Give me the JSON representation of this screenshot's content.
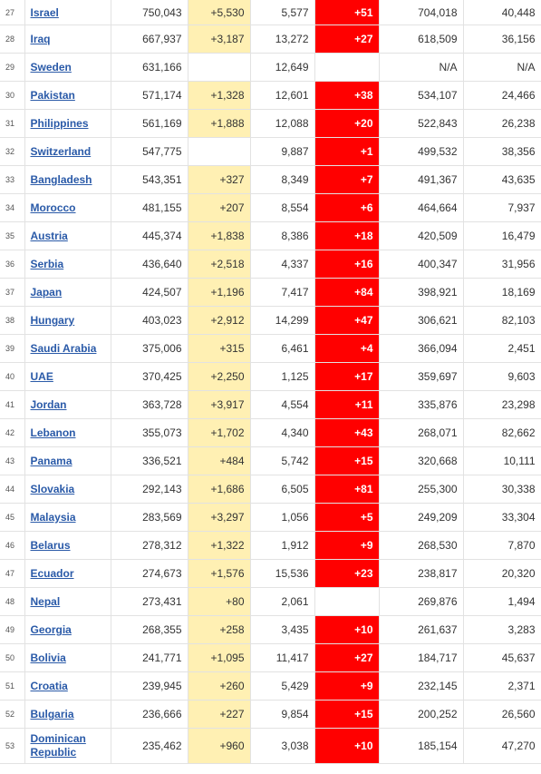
{
  "colors": {
    "new_cases_bg": "#fff0b3",
    "new_deaths_bg": "#ff0000",
    "link": "#2a5aa8"
  },
  "rows": [
    {
      "rank": "27",
      "country": "Israel",
      "total_cases": "750,043",
      "new_cases": "+5,530",
      "total_deaths": "5,577",
      "new_deaths": "+51",
      "total_recovered": "704,018",
      "active_cases": "40,448"
    },
    {
      "rank": "28",
      "country": "Iraq",
      "total_cases": "667,937",
      "new_cases": "+3,187",
      "total_deaths": "13,272",
      "new_deaths": "+27",
      "total_recovered": "618,509",
      "active_cases": "36,156"
    },
    {
      "rank": "29",
      "country": "Sweden",
      "total_cases": "631,166",
      "new_cases": "",
      "total_deaths": "12,649",
      "new_deaths": "",
      "total_recovered": "N/A",
      "active_cases": "N/A"
    },
    {
      "rank": "30",
      "country": "Pakistan",
      "total_cases": "571,174",
      "new_cases": "+1,328",
      "total_deaths": "12,601",
      "new_deaths": "+38",
      "total_recovered": "534,107",
      "active_cases": "24,466"
    },
    {
      "rank": "31",
      "country": "Philippines",
      "total_cases": "561,169",
      "new_cases": "+1,888",
      "total_deaths": "12,088",
      "new_deaths": "+20",
      "total_recovered": "522,843",
      "active_cases": "26,238"
    },
    {
      "rank": "32",
      "country": "Switzerland",
      "total_cases": "547,775",
      "new_cases": "",
      "total_deaths": "9,887",
      "new_deaths": "+1",
      "total_recovered": "499,532",
      "active_cases": "38,356"
    },
    {
      "rank": "33",
      "country": "Bangladesh",
      "total_cases": "543,351",
      "new_cases": "+327",
      "total_deaths": "8,349",
      "new_deaths": "+7",
      "total_recovered": "491,367",
      "active_cases": "43,635"
    },
    {
      "rank": "34",
      "country": "Morocco",
      "total_cases": "481,155",
      "new_cases": "+207",
      "total_deaths": "8,554",
      "new_deaths": "+6",
      "total_recovered": "464,664",
      "active_cases": "7,937"
    },
    {
      "rank": "35",
      "country": "Austria",
      "total_cases": "445,374",
      "new_cases": "+1,838",
      "total_deaths": "8,386",
      "new_deaths": "+18",
      "total_recovered": "420,509",
      "active_cases": "16,479"
    },
    {
      "rank": "36",
      "country": "Serbia",
      "total_cases": "436,640",
      "new_cases": "+2,518",
      "total_deaths": "4,337",
      "new_deaths": "+16",
      "total_recovered": "400,347",
      "active_cases": "31,956"
    },
    {
      "rank": "37",
      "country": "Japan",
      "total_cases": "424,507",
      "new_cases": "+1,196",
      "total_deaths": "7,417",
      "new_deaths": "+84",
      "total_recovered": "398,921",
      "active_cases": "18,169"
    },
    {
      "rank": "38",
      "country": "Hungary",
      "total_cases": "403,023",
      "new_cases": "+2,912",
      "total_deaths": "14,299",
      "new_deaths": "+47",
      "total_recovered": "306,621",
      "active_cases": "82,103"
    },
    {
      "rank": "39",
      "country": "Saudi Arabia",
      "total_cases": "375,006",
      "new_cases": "+315",
      "total_deaths": "6,461",
      "new_deaths": "+4",
      "total_recovered": "366,094",
      "active_cases": "2,451"
    },
    {
      "rank": "40",
      "country": "UAE",
      "total_cases": "370,425",
      "new_cases": "+2,250",
      "total_deaths": "1,125",
      "new_deaths": "+17",
      "total_recovered": "359,697",
      "active_cases": "9,603"
    },
    {
      "rank": "41",
      "country": "Jordan",
      "total_cases": "363,728",
      "new_cases": "+3,917",
      "total_deaths": "4,554",
      "new_deaths": "+11",
      "total_recovered": "335,876",
      "active_cases": "23,298"
    },
    {
      "rank": "42",
      "country": "Lebanon",
      "total_cases": "355,073",
      "new_cases": "+1,702",
      "total_deaths": "4,340",
      "new_deaths": "+43",
      "total_recovered": "268,071",
      "active_cases": "82,662"
    },
    {
      "rank": "43",
      "country": "Panama",
      "total_cases": "336,521",
      "new_cases": "+484",
      "total_deaths": "5,742",
      "new_deaths": "+15",
      "total_recovered": "320,668",
      "active_cases": "10,111"
    },
    {
      "rank": "44",
      "country": "Slovakia",
      "total_cases": "292,143",
      "new_cases": "+1,686",
      "total_deaths": "6,505",
      "new_deaths": "+81",
      "total_recovered": "255,300",
      "active_cases": "30,338"
    },
    {
      "rank": "45",
      "country": "Malaysia",
      "total_cases": "283,569",
      "new_cases": "+3,297",
      "total_deaths": "1,056",
      "new_deaths": "+5",
      "total_recovered": "249,209",
      "active_cases": "33,304"
    },
    {
      "rank": "46",
      "country": "Belarus",
      "total_cases": "278,312",
      "new_cases": "+1,322",
      "total_deaths": "1,912",
      "new_deaths": "+9",
      "total_recovered": "268,530",
      "active_cases": "7,870"
    },
    {
      "rank": "47",
      "country": "Ecuador",
      "total_cases": "274,673",
      "new_cases": "+1,576",
      "total_deaths": "15,536",
      "new_deaths": "+23",
      "total_recovered": "238,817",
      "active_cases": "20,320"
    },
    {
      "rank": "48",
      "country": "Nepal",
      "total_cases": "273,431",
      "new_cases": "+80",
      "total_deaths": "2,061",
      "new_deaths": "",
      "total_recovered": "269,876",
      "active_cases": "1,494"
    },
    {
      "rank": "49",
      "country": "Georgia",
      "total_cases": "268,355",
      "new_cases": "+258",
      "total_deaths": "3,435",
      "new_deaths": "+10",
      "total_recovered": "261,637",
      "active_cases": "3,283"
    },
    {
      "rank": "50",
      "country": "Bolivia",
      "total_cases": "241,771",
      "new_cases": "+1,095",
      "total_deaths": "11,417",
      "new_deaths": "+27",
      "total_recovered": "184,717",
      "active_cases": "45,637"
    },
    {
      "rank": "51",
      "country": "Croatia",
      "total_cases": "239,945",
      "new_cases": "+260",
      "total_deaths": "5,429",
      "new_deaths": "+9",
      "total_recovered": "232,145",
      "active_cases": "2,371"
    },
    {
      "rank": "52",
      "country": "Bulgaria",
      "total_cases": "236,666",
      "new_cases": "+227",
      "total_deaths": "9,854",
      "new_deaths": "+15",
      "total_recovered": "200,252",
      "active_cases": "26,560"
    },
    {
      "rank": "53",
      "country": "Dominican Republic",
      "total_cases": "235,462",
      "new_cases": "+960",
      "total_deaths": "3,038",
      "new_deaths": "+10",
      "total_recovered": "185,154",
      "active_cases": "47,270"
    }
  ]
}
